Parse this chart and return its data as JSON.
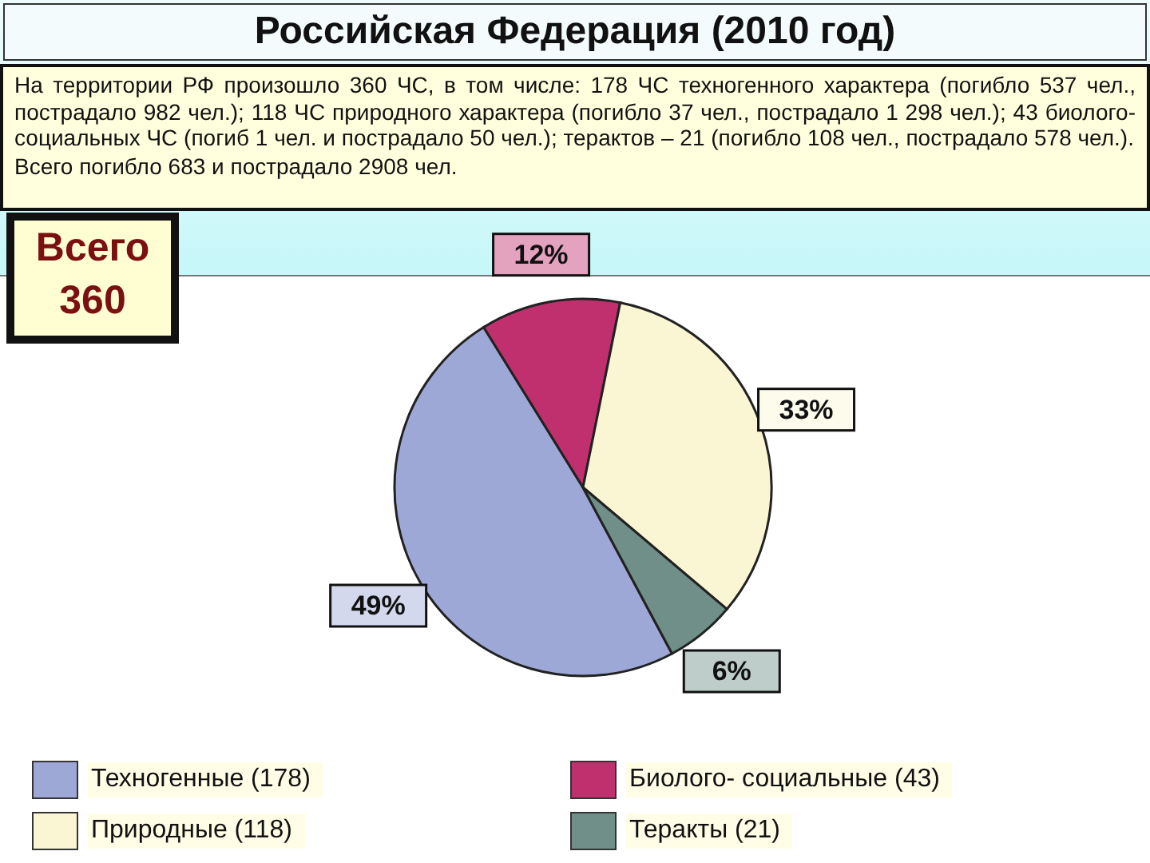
{
  "chart_data": {
    "type": "pie",
    "title": "Российская Федерация (2010 год)",
    "annotations": [
      "На территории РФ произошло 360 ЧС, в том числе: 178 ЧС техногенного характера (погибло 537 чел., пострадало 982 чел.); 118 ЧС природного характера (погибло 37 чел., пострадало 1 298 чел.); 43 биолого-социальных ЧС (погиб 1 чел. и пострадало 50 чел.); терактов – 21 (погибло 108 чел., пострадало 578 чел.).",
      "Всего погибло 683 и пострадало 2908 чел.",
      "Всего 360"
    ],
    "categories": [
      "Техногенные (178)",
      "Биолого- социальные (43)",
      "Природные (118)",
      "Теракты (21)"
    ],
    "values": [
      49,
      12,
      33,
      6
    ],
    "value_labels": [
      "49%",
      "12%",
      "33%",
      "6%"
    ],
    "colors": [
      "#9ea8d6",
      "#c0306f",
      "#faf6d4",
      "#6f8f88"
    ],
    "legend": "bottom"
  }
}
